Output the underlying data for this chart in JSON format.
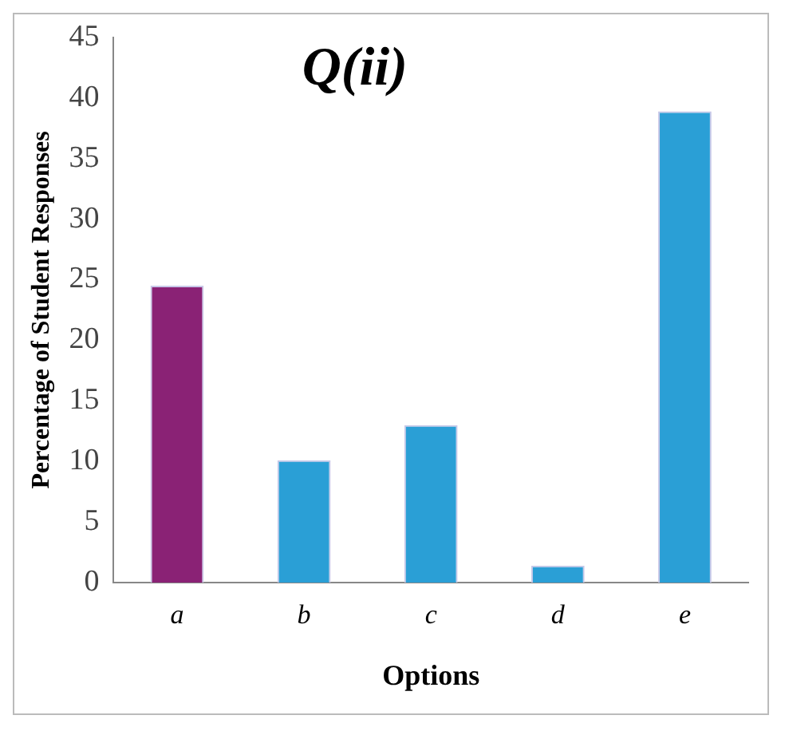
{
  "chart_data": {
    "type": "bar",
    "title": "Q(ii)",
    "xlabel": "Options",
    "ylabel": "Percentage of Student Responses",
    "categories": [
      "a",
      "b",
      "c",
      "d",
      "e"
    ],
    "values": [
      24.5,
      10.1,
      13.0,
      1.4,
      38.9
    ],
    "colors": [
      "#8a2275",
      "#2a9fd6",
      "#2a9fd6",
      "#2a9fd6",
      "#2a9fd6"
    ],
    "ylim": [
      0,
      45
    ],
    "yticks": [
      0,
      5,
      10,
      15,
      20,
      25,
      30,
      35,
      40,
      45
    ],
    "grid": false,
    "legend": false
  }
}
